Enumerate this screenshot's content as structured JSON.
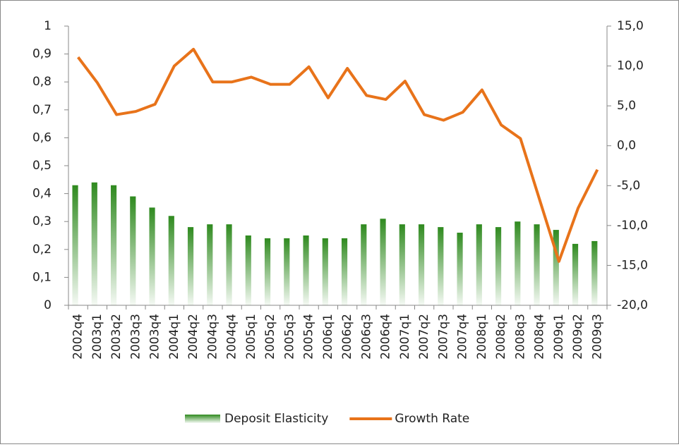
{
  "chart_data": {
    "type": "bar_line",
    "categories": [
      "2002q4",
      "2003q1",
      "2003q2",
      "2003q3",
      "2003q4",
      "2004q1",
      "2004q2",
      "2004q3",
      "2004q4",
      "2005q1",
      "2005q2",
      "2005q3",
      "2005q4",
      "2006q1",
      "2006q2",
      "2006q3",
      "2006q4",
      "2007q1",
      "2007q2",
      "2007q3",
      "2007q4",
      "2008q1",
      "2008q2",
      "2008q3",
      "2008q4",
      "2009q1",
      "2009q2",
      "2009q3"
    ],
    "series": [
      {
        "name": "Deposit Elasticity",
        "type": "bar",
        "color": "#2f8a1f",
        "values": [
          0.43,
          0.44,
          0.43,
          0.39,
          0.35,
          0.32,
          0.28,
          0.29,
          0.29,
          0.25,
          0.24,
          0.24,
          0.25,
          0.24,
          0.24,
          0.29,
          0.31,
          0.29,
          0.29,
          0.28,
          0.26,
          0.29,
          0.28,
          0.3,
          0.29,
          0.27,
          0.22,
          0.23
        ]
      },
      {
        "name": "Growth Rate",
        "type": "line",
        "axis": "y2",
        "color": "#e8731a",
        "values": [
          11.1,
          7.9,
          3.9,
          4.3,
          5.2,
          10.0,
          12.1,
          8.0,
          8.0,
          8.6,
          7.7,
          7.7,
          9.9,
          6.0,
          9.7,
          6.3,
          5.8,
          8.1,
          3.9,
          3.2,
          4.2,
          7.0,
          2.6,
          0.9,
          -6.8,
          -14.5,
          -7.8,
          -3.0
        ]
      }
    ],
    "ylim": [
      0,
      1
    ],
    "yticks": [
      0,
      {
        "value": 0.1,
        "label": "0,1"
      },
      {
        "value": 0.2,
        "label": "0,2"
      },
      {
        "value": 0.3,
        "label": "0,3"
      },
      {
        "value": 0.4,
        "label": "0,4"
      },
      {
        "value": 0.5,
        "label": "0,5"
      },
      {
        "value": 0.6,
        "label": "0,6"
      },
      {
        "value": 0.7,
        "label": "0,7"
      },
      {
        "value": 0.8,
        "label": "0,8"
      },
      {
        "value": 0.9,
        "label": "0,9"
      },
      1
    ],
    "y2lim": [
      -20,
      15
    ],
    "y2ticks": [
      {
        "value": -20,
        "label": "-20,0"
      },
      {
        "value": -15,
        "label": "-15,0"
      },
      {
        "value": -10,
        "label": "-10,0"
      },
      {
        "value": -5,
        "label": "-5,0"
      },
      {
        "value": 0,
        "label": "0,0"
      },
      {
        "value": 5,
        "label": "5,0"
      },
      {
        "value": 10,
        "label": "10,0"
      },
      {
        "value": 15,
        "label": "15,0"
      }
    ],
    "grid": false,
    "legend": "bottom"
  }
}
